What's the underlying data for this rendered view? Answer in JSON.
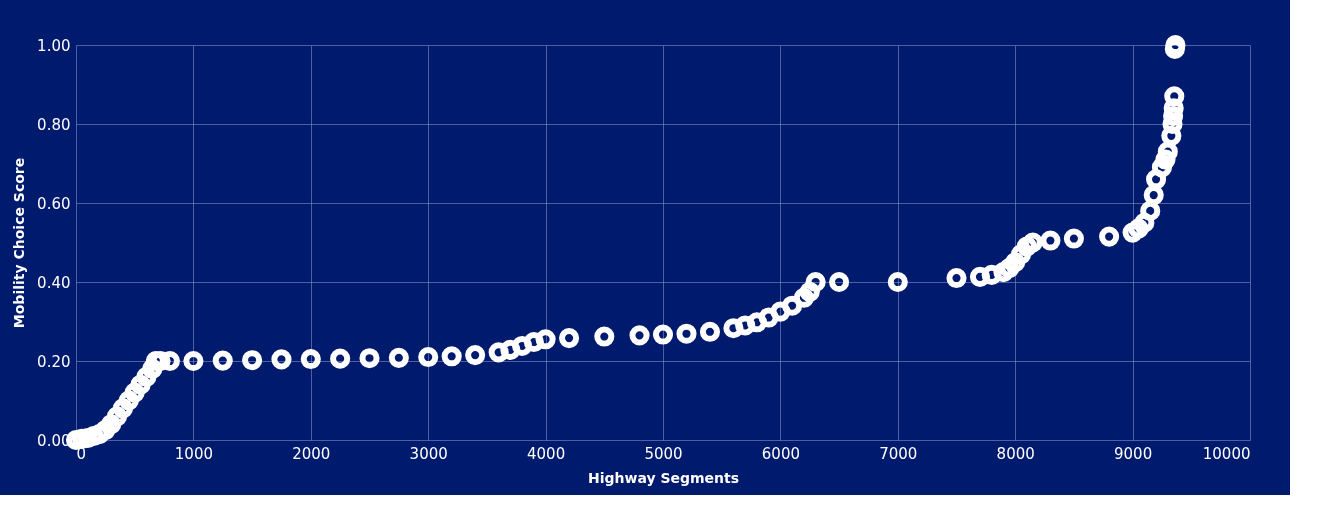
{
  "chart_data": {
    "type": "scatter",
    "xlabel": "Highway Segments",
    "ylabel": "Mobility Choice Score",
    "x": [
      0,
      50,
      100,
      150,
      200,
      250,
      300,
      350,
      400,
      450,
      500,
      550,
      600,
      650,
      680,
      720,
      800,
      1000,
      1250,
      1500,
      1750,
      2000,
      2250,
      2500,
      2750,
      3000,
      3200,
      3400,
      3600,
      3700,
      3800,
      3900,
      4000,
      4200,
      4500,
      4800,
      5000,
      5200,
      5400,
      5600,
      5700,
      5800,
      5900,
      6000,
      6100,
      6200,
      6250,
      6300,
      6500,
      7000,
      7500,
      7700,
      7800,
      7900,
      7950,
      8000,
      8050,
      8100,
      8150,
      8300,
      8500,
      8800,
      9000,
      9050,
      9100,
      9150,
      9180,
      9200,
      9250,
      9280,
      9300,
      9330,
      9340,
      9345,
      9350,
      9355,
      9360,
      9365
    ],
    "series": [
      {
        "color": "#ffffff",
        "values": [
          0.0,
          0.003,
          0.005,
          0.01,
          0.015,
          0.025,
          0.04,
          0.06,
          0.08,
          0.1,
          0.12,
          0.14,
          0.16,
          0.18,
          0.2,
          0.2,
          0.2,
          0.2,
          0.201,
          0.202,
          0.204,
          0.205,
          0.206,
          0.207,
          0.208,
          0.21,
          0.212,
          0.215,
          0.222,
          0.228,
          0.238,
          0.248,
          0.255,
          0.258,
          0.262,
          0.265,
          0.267,
          0.269,
          0.274,
          0.283,
          0.29,
          0.298,
          0.31,
          0.325,
          0.34,
          0.36,
          0.375,
          0.4,
          0.4,
          0.4,
          0.41,
          0.413,
          0.418,
          0.425,
          0.435,
          0.45,
          0.47,
          0.49,
          0.5,
          0.505,
          0.51,
          0.515,
          0.525,
          0.535,
          0.55,
          0.58,
          0.62,
          0.66,
          0.69,
          0.71,
          0.73,
          0.77,
          0.8,
          0.82,
          0.84,
          0.87,
          0.99,
          1.0
        ]
      }
    ],
    "xlim": [
      0,
      10000
    ],
    "xticks": [
      0,
      1000,
      2000,
      3000,
      4000,
      5000,
      6000,
      7000,
      8000,
      9000,
      10000
    ],
    "ylim": [
      0,
      1
    ],
    "yticks": [
      {
        "value": 0,
        "label": "0.00"
      },
      {
        "value": 0.2,
        "label": "0.20"
      },
      {
        "value": 0.4,
        "label": "0.40"
      },
      {
        "value": 0.6,
        "label": "0.60"
      },
      {
        "value": 0.8,
        "label": "0.80"
      },
      {
        "value": 1,
        "label": "1.00"
      }
    ],
    "grid": true,
    "marker": "circle"
  }
}
